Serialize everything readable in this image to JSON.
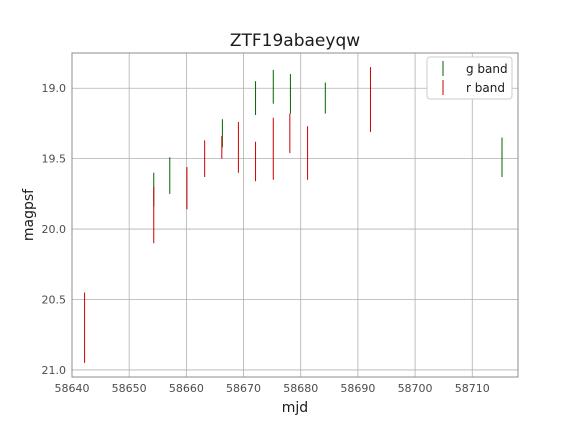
{
  "chart_data": {
    "type": "scatter",
    "title": "ZTF19abaeyqw",
    "xlabel": "mjd",
    "ylabel": "magpsf",
    "xlim": [
      58640,
      58718
    ],
    "ylim": [
      21.05,
      18.75
    ],
    "y_inverted": true,
    "grid": true,
    "legend_position": "top-right",
    "x_ticks": [
      58640,
      58650,
      58660,
      58670,
      58680,
      58690,
      58700,
      58710
    ],
    "x_tick_labels": [
      "58640",
      "58650",
      "58660",
      "58670",
      "58680",
      "58690",
      "58700",
      "58710"
    ],
    "y_ticks": [
      19.0,
      19.5,
      20.0,
      20.5,
      21.0
    ],
    "y_tick_labels": [
      "19.0",
      "19.5",
      "20.0",
      "20.5",
      "21.0"
    ],
    "series": [
      {
        "name": "g band",
        "color": "#006400",
        "points": [
          {
            "x": 58654.3,
            "y": 19.72,
            "err": 0.12
          },
          {
            "x": 58657.1,
            "y": 19.62,
            "err": 0.13
          },
          {
            "x": 58666.3,
            "y": 19.32,
            "err": 0.1
          },
          {
            "x": 58672.1,
            "y": 19.07,
            "err": 0.12
          },
          {
            "x": 58675.2,
            "y": 18.99,
            "err": 0.12
          },
          {
            "x": 58678.2,
            "y": 19.04,
            "err": 0.14
          },
          {
            "x": 58684.3,
            "y": 19.07,
            "err": 0.11
          },
          {
            "x": 58715.2,
            "y": 19.49,
            "err": 0.14
          }
        ]
      },
      {
        "name": "r band",
        "color": "#cc0000",
        "points": [
          {
            "x": 58642.2,
            "y": 20.7,
            "err": 0.25
          },
          {
            "x": 58654.3,
            "y": 19.9,
            "err": 0.2
          },
          {
            "x": 58660.1,
            "y": 19.71,
            "err": 0.15
          },
          {
            "x": 58663.2,
            "y": 19.5,
            "err": 0.13
          },
          {
            "x": 58666.2,
            "y": 19.42,
            "err": 0.08
          },
          {
            "x": 58669.1,
            "y": 19.42,
            "err": 0.18
          },
          {
            "x": 58672.1,
            "y": 19.52,
            "err": 0.14
          },
          {
            "x": 58675.2,
            "y": 19.43,
            "err": 0.22
          },
          {
            "x": 58678.1,
            "y": 19.32,
            "err": 0.14
          },
          {
            "x": 58681.2,
            "y": 19.46,
            "err": 0.19
          },
          {
            "x": 58692.2,
            "y": 19.08,
            "err": 0.23
          }
        ]
      }
    ]
  }
}
